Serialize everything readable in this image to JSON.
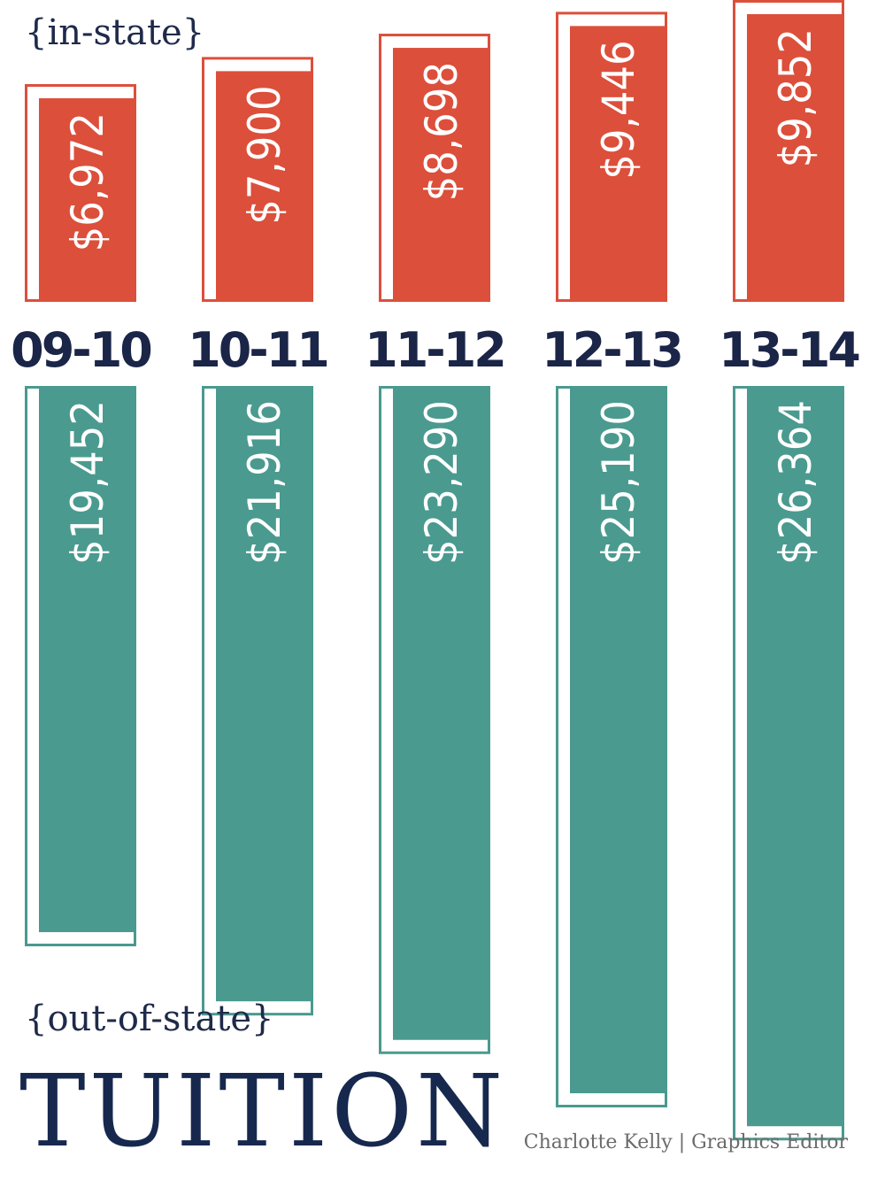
{
  "labels": {
    "in_state": "{in-state}",
    "out_of_state": "{out-of-state}",
    "title": "TUITION",
    "credit": "Charlotte Kelly | Graphics Editor"
  },
  "colors": {
    "in_state": "#dc4f3b",
    "out_of_state": "#4a9a8f",
    "year_text": "#1a2547",
    "bar_text": "#ffffff"
  },
  "chart_data": {
    "type": "bar",
    "categories": [
      "09-10",
      "10-11",
      "11-12",
      "12-13",
      "13-14"
    ],
    "series": [
      {
        "name": "{in-state}",
        "values": [
          6972,
          7900,
          8698,
          9446,
          9852
        ],
        "value_labels": [
          "$6,972",
          "$7,900",
          "$8,698",
          "$9,446",
          "$9,852"
        ]
      },
      {
        "name": "{out-of-state}",
        "values": [
          19452,
          21916,
          23290,
          25190,
          26364
        ],
        "value_labels": [
          "$19,452",
          "$21,916",
          "$23,290",
          "$25,190",
          "$26,364"
        ]
      }
    ],
    "title": "TUITION"
  }
}
